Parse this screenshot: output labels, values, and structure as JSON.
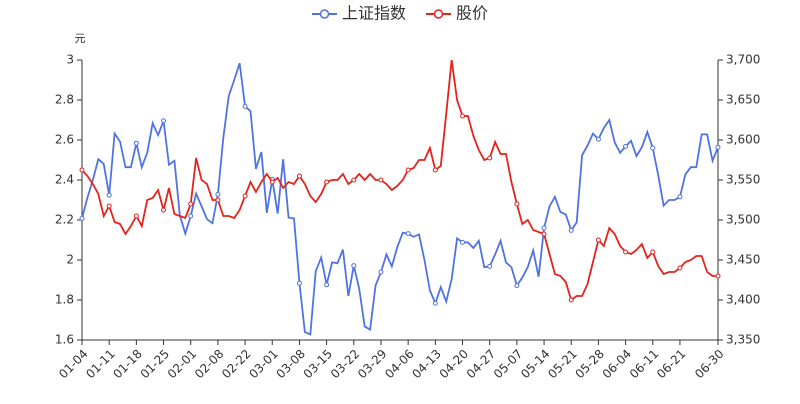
{
  "chart_data": {
    "type": "line",
    "y_label": "元",
    "categories": [
      "01-04",
      null,
      null,
      null,
      null,
      "01-11",
      null,
      null,
      null,
      null,
      "01-18",
      null,
      null,
      null,
      null,
      "01-25",
      null,
      null,
      null,
      null,
      "02-01",
      null,
      null,
      null,
      null,
      "02-08",
      null,
      null,
      null,
      null,
      "02-22",
      null,
      null,
      null,
      null,
      "03-01",
      null,
      null,
      null,
      null,
      "03-08",
      null,
      null,
      null,
      null,
      "03-15",
      null,
      null,
      null,
      null,
      "03-22",
      null,
      null,
      null,
      null,
      "03-29",
      null,
      null,
      null,
      null,
      "04-06",
      null,
      null,
      null,
      null,
      "04-13",
      null,
      null,
      null,
      null,
      "04-20",
      null,
      null,
      null,
      null,
      "04-27",
      null,
      null,
      null,
      null,
      "05-07",
      null,
      null,
      null,
      null,
      "05-14",
      null,
      null,
      null,
      null,
      "05-21",
      null,
      null,
      null,
      null,
      "05-28",
      null,
      null,
      null,
      null,
      "06-04",
      null,
      null,
      null,
      null,
      "06-11",
      null,
      null,
      null,
      null,
      "06-21",
      null,
      null,
      null,
      null,
      null,
      null,
      "06-30"
    ],
    "series": [
      {
        "name": "上证指数",
        "color": "#4f73e3",
        "axis": "y2",
        "values": [
          3502,
          3528,
          3550,
          3576,
          3570,
          3531,
          3608,
          3598,
          3566,
          3566,
          3596,
          3566,
          3584,
          3621,
          3606,
          3624,
          3569,
          3574,
          3506,
          3483,
          3505,
          3533,
          3517,
          3501,
          3496,
          3532,
          3603,
          3655,
          3675,
          3696,
          3642,
          3636,
          3564,
          3585,
          3509,
          3551,
          3508,
          3576,
          3503,
          3502,
          3421,
          3360,
          3357,
          3436,
          3453,
          3419,
          3447,
          3446,
          3463,
          3405,
          3443,
          3414,
          3367,
          3363,
          3418,
          3435,
          3457,
          3442,
          3466,
          3484,
          3483,
          3479,
          3482,
          3450,
          3412,
          3396,
          3416,
          3398,
          3426,
          3477,
          3472,
          3472,
          3465,
          3474,
          3441,
          3442,
          3457,
          3474,
          3447,
          3441,
          3418,
          3428,
          3441,
          3462,
          3429,
          3490,
          3517,
          3529,
          3510,
          3507,
          3487,
          3497,
          3581,
          3593,
          3608,
          3601,
          3615,
          3625,
          3597,
          3584,
          3592,
          3599,
          3580,
          3591,
          3610,
          3590,
          3556,
          3518,
          3525,
          3525,
          3529,
          3557,
          3566,
          3566,
          3607,
          3607,
          3574,
          3591
        ]
      },
      {
        "name": "股价",
        "color": "#e3231c",
        "axis": "y",
        "values": [
          2.45,
          2.42,
          2.38,
          2.33,
          2.22,
          2.27,
          2.19,
          2.18,
          2.13,
          2.17,
          2.22,
          2.17,
          2.3,
          2.31,
          2.35,
          2.25,
          2.36,
          2.23,
          2.22,
          2.21,
          2.28,
          2.51,
          2.4,
          2.38,
          2.3,
          2.3,
          2.22,
          2.22,
          2.21,
          2.25,
          2.32,
          2.39,
          2.34,
          2.39,
          2.43,
          2.39,
          2.41,
          2.36,
          2.39,
          2.38,
          2.42,
          2.38,
          2.32,
          2.29,
          2.33,
          2.39,
          2.4,
          2.4,
          2.43,
          2.38,
          2.4,
          2.43,
          2.4,
          2.43,
          2.4,
          2.4,
          2.38,
          2.35,
          2.37,
          2.4,
          2.45,
          2.46,
          2.5,
          2.5,
          2.56,
          2.45,
          2.47,
          2.73,
          3.0,
          2.8,
          2.72,
          2.72,
          2.62,
          2.55,
          2.5,
          2.51,
          2.59,
          2.53,
          2.53,
          2.39,
          2.28,
          2.18,
          2.2,
          2.15,
          2.14,
          2.13,
          2.03,
          1.93,
          1.92,
          1.89,
          1.8,
          1.82,
          1.82,
          1.88,
          1.99,
          2.1,
          2.07,
          2.16,
          2.13,
          2.07,
          2.04,
          2.03,
          2.05,
          2.08,
          2.01,
          2.04,
          1.97,
          1.93,
          1.94,
          1.94,
          1.96,
          1.99,
          2.0,
          2.02,
          2.02,
          1.94,
          1.92,
          1.92
        ]
      }
    ],
    "ylim": [
      1.6,
      3
    ],
    "yticks": [
      1.6,
      1.8,
      2,
      2.2,
      2.4,
      2.6,
      2.8,
      3
    ],
    "y2lim": [
      3350,
      3700
    ],
    "y2ticks": [
      {
        "value": 3350,
        "label": "3,350"
      },
      {
        "value": 3400,
        "label": "3,400"
      },
      {
        "value": 3450,
        "label": "3,450"
      },
      {
        "value": 3500,
        "label": "3,500"
      },
      {
        "value": 3550,
        "label": "3,550"
      },
      {
        "value": 3600,
        "label": "3,600"
      },
      {
        "value": 3650,
        "label": "3,650"
      },
      {
        "value": 3700,
        "label": "3,700"
      }
    ],
    "grid": false,
    "legend": "top"
  }
}
